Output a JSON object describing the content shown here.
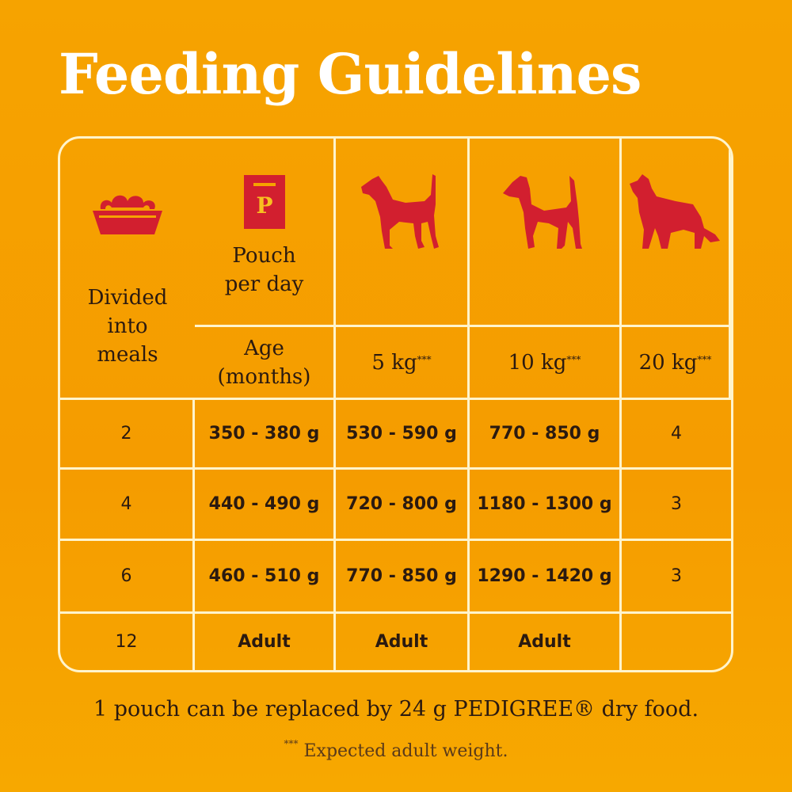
{
  "title": "Feeding Guidelines",
  "colors": {
    "background": "#f6a300",
    "icon": "#d21f2f",
    "text": "#2b1a10",
    "title": "#ffffff",
    "grid": "#fff4cc"
  },
  "header": {
    "pouch_icon": "pouch-icon",
    "pouch_label_1": "Pouch",
    "pouch_label_2": "per day",
    "bowl_icon": "food-bowl-icon",
    "meals_label_1": "Divided",
    "meals_label_2": "into",
    "meals_label_3": "meals",
    "age_label_1": "Age",
    "age_label_2": "(months)",
    "weights": [
      {
        "label": "5 kg",
        "mark": "***",
        "icon": "small-dog-icon"
      },
      {
        "label": "10 kg",
        "mark": "***",
        "icon": "terrier-dog-icon"
      },
      {
        "label": "20 kg",
        "mark": "***",
        "icon": "collie-dog-icon"
      }
    ]
  },
  "rows": [
    {
      "age": "2",
      "w5": "350 - 380 g",
      "w10": "530 - 590 g",
      "w20": "770 - 850 g",
      "meals": "4"
    },
    {
      "age": "4",
      "w5": "440 - 490 g",
      "w10": "720 - 800 g",
      "w20": "1180 - 1300 g",
      "meals": "3"
    },
    {
      "age": "6",
      "w5": "460 - 510 g",
      "w10": "770 - 850 g",
      "w20": "1290 - 1420 g",
      "meals": "3"
    },
    {
      "age": "12",
      "w5": "Adult",
      "w10": "Adult",
      "w20": "Adult",
      "meals": ""
    }
  ],
  "footnote_main": "1 pouch can be replaced by 24 g PEDIGREE® dry food.",
  "footnote_mark": "***",
  "footnote_text": " Expected adult weight."
}
